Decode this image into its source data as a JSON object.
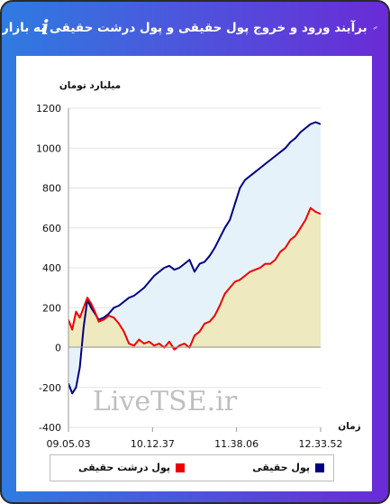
{
  "header": {
    "title": "برآیند ورود و خروج پول حقیقی و پول درشت حقیقی به بازار",
    "link_icon": "link-icon",
    "info_icon": "i"
  },
  "colors": {
    "header_start": "#2f7be0",
    "header_end": "#6a2bd6",
    "series_real_money": "#000080",
    "series_big_real_money": "#ee0000",
    "area_real_money": "#e6f2fa",
    "area_big_real_money": "#efe8b8"
  },
  "chart_data": {
    "type": "area",
    "ylabel": "میلیارد تومان",
    "xlabel": "زمان",
    "ylim": [
      -400,
      1200
    ],
    "yticks": [
      "1200",
      "1000",
      "800",
      "600",
      "400",
      "200",
      "0",
      "-200",
      "-400"
    ],
    "xticks": [
      "09.05.03",
      "10.12.37",
      "11.38.06",
      "12.33.52"
    ],
    "watermark": "LiveTSE.ir",
    "legend_position": "bottom",
    "series": [
      {
        "name": "پول حقیقی",
        "color": "#000080",
        "x": [
          0,
          0.015,
          0.03,
          0.045,
          0.06,
          0.075,
          0.09,
          0.105,
          0.12,
          0.14,
          0.16,
          0.18,
          0.2,
          0.22,
          0.24,
          0.26,
          0.28,
          0.3,
          0.32,
          0.34,
          0.36,
          0.38,
          0.4,
          0.42,
          0.44,
          0.46,
          0.48,
          0.5,
          0.52,
          0.54,
          0.56,
          0.58,
          0.6,
          0.62,
          0.64,
          0.66,
          0.68,
          0.7,
          0.72,
          0.74,
          0.76,
          0.78,
          0.8,
          0.82,
          0.84,
          0.86,
          0.88,
          0.9,
          0.92,
          0.94,
          0.96,
          0.98,
          1.0
        ],
        "values": [
          -180,
          -230,
          -200,
          -100,
          100,
          240,
          200,
          170,
          140,
          150,
          170,
          200,
          210,
          230,
          250,
          260,
          280,
          300,
          330,
          360,
          380,
          400,
          410,
          390,
          400,
          420,
          440,
          380,
          420,
          430,
          460,
          500,
          550,
          600,
          640,
          720,
          800,
          840,
          860,
          880,
          900,
          920,
          940,
          960,
          980,
          1000,
          1030,
          1050,
          1080,
          1100,
          1120,
          1130,
          1120
        ]
      },
      {
        "name": "پول درشت حقیقی",
        "color": "#ee0000",
        "x": [
          0,
          0.015,
          0.03,
          0.045,
          0.06,
          0.075,
          0.09,
          0.105,
          0.12,
          0.14,
          0.16,
          0.18,
          0.2,
          0.22,
          0.24,
          0.26,
          0.28,
          0.3,
          0.32,
          0.34,
          0.36,
          0.38,
          0.4,
          0.42,
          0.44,
          0.46,
          0.48,
          0.5,
          0.52,
          0.54,
          0.56,
          0.58,
          0.6,
          0.62,
          0.64,
          0.66,
          0.68,
          0.7,
          0.72,
          0.74,
          0.76,
          0.78,
          0.8,
          0.82,
          0.84,
          0.86,
          0.88,
          0.9,
          0.92,
          0.94,
          0.96,
          0.98,
          1.0
        ],
        "values": [
          140,
          90,
          180,
          150,
          200,
          250,
          220,
          180,
          130,
          140,
          160,
          150,
          120,
          80,
          20,
          10,
          40,
          20,
          30,
          10,
          20,
          0,
          30,
          -10,
          10,
          20,
          0,
          60,
          80,
          120,
          130,
          160,
          210,
          270,
          300,
          330,
          340,
          360,
          380,
          390,
          400,
          420,
          420,
          440,
          480,
          500,
          540,
          560,
          600,
          640,
          700,
          680,
          670
        ]
      }
    ]
  },
  "legend": {
    "real_money": "پول حقیقی",
    "big_real_money": "پول درشت حقیقی"
  }
}
